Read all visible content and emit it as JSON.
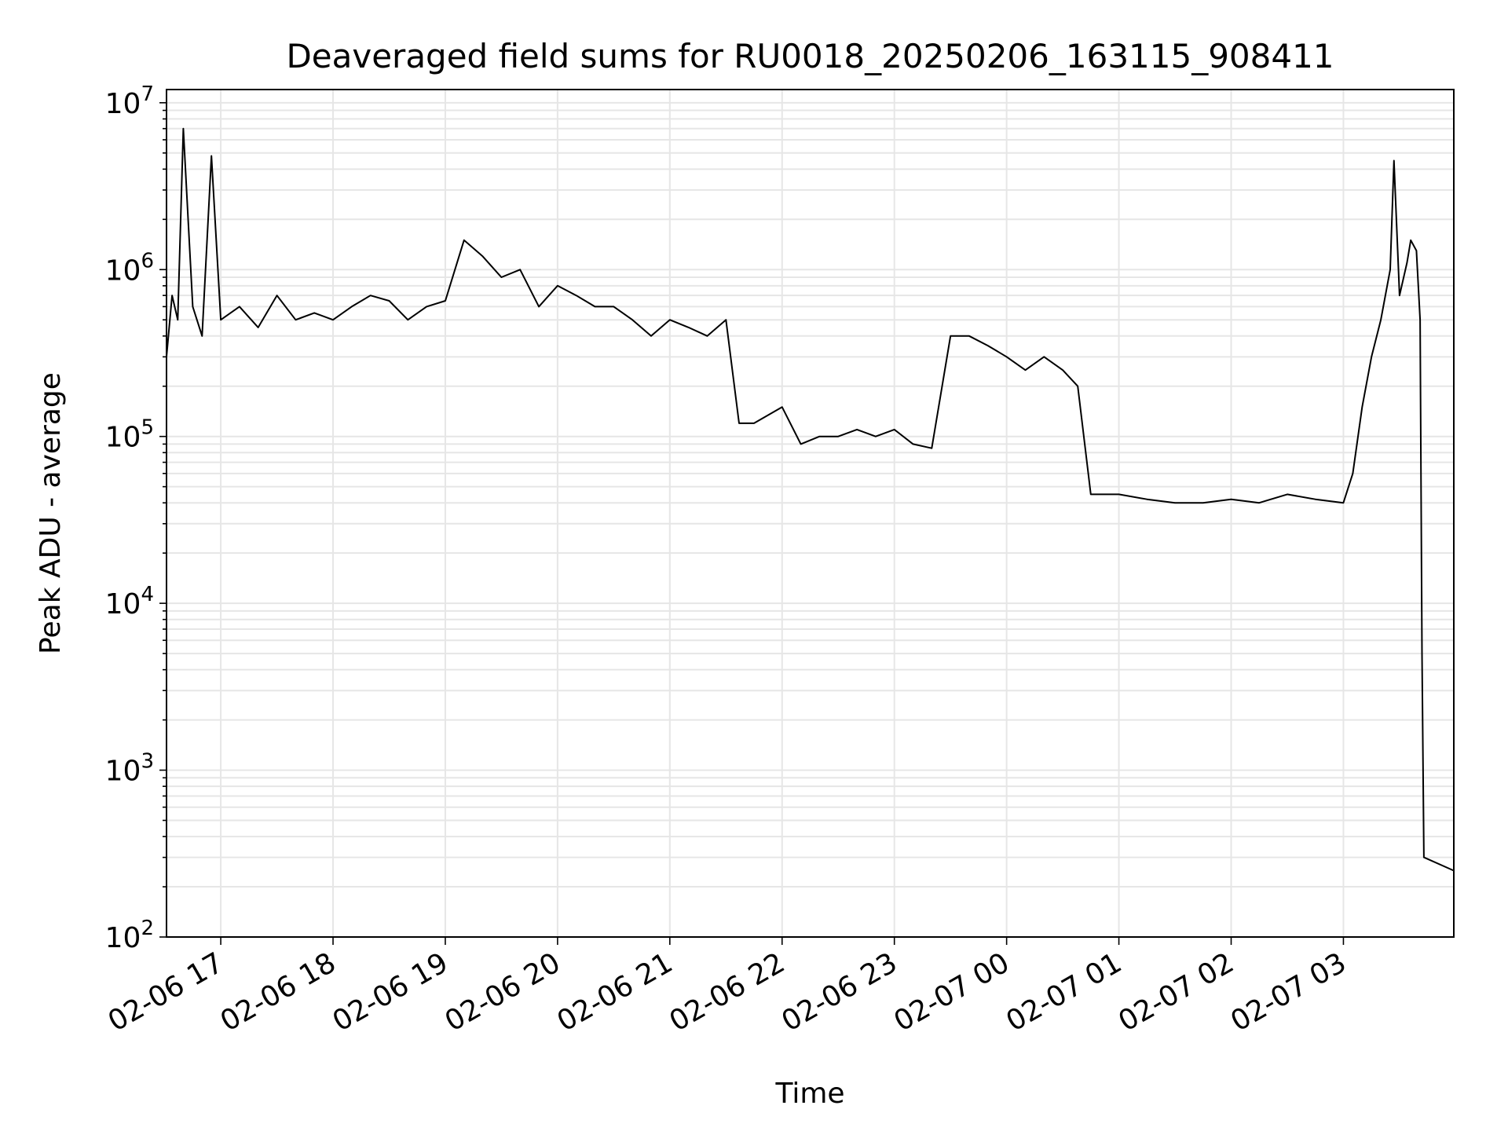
{
  "chart_data": {
    "type": "line",
    "title": "Deaveraged field sums for RU0018_20250206_163115_908411",
    "xlabel": "Time",
    "ylabel": "Peak ADU - average",
    "yscale": "log",
    "ylim": [
      100,
      12000000
    ],
    "xlim": [
      "2025-02-06 16:31",
      "2025-02-07 03:59"
    ],
    "grid": true,
    "grid_color": "#e6e6e6",
    "line_color": "#000000",
    "legend": "none",
    "x_ticks": [
      {
        "t": "2025-02-06 17:00",
        "label": "02-06 17"
      },
      {
        "t": "2025-02-06 18:00",
        "label": "02-06 18"
      },
      {
        "t": "2025-02-06 19:00",
        "label": "02-06 19"
      },
      {
        "t": "2025-02-06 20:00",
        "label": "02-06 20"
      },
      {
        "t": "2025-02-06 21:00",
        "label": "02-06 21"
      },
      {
        "t": "2025-02-06 22:00",
        "label": "02-06 22"
      },
      {
        "t": "2025-02-06 23:00",
        "label": "02-06 23"
      },
      {
        "t": "2025-02-07 00:00",
        "label": "02-07 00"
      },
      {
        "t": "2025-02-07 01:00",
        "label": "02-07 01"
      },
      {
        "t": "2025-02-07 02:00",
        "label": "02-07 02"
      },
      {
        "t": "2025-02-07 03:00",
        "label": "02-07 03"
      }
    ],
    "y_ticks": [
      {
        "v": 100,
        "mantissa": "10",
        "exp": "2"
      },
      {
        "v": 1000,
        "mantissa": "10",
        "exp": "3"
      },
      {
        "v": 10000,
        "mantissa": "10",
        "exp": "4"
      },
      {
        "v": 100000,
        "mantissa": "10",
        "exp": "5"
      },
      {
        "v": 1000000,
        "mantissa": "10",
        "exp": "6"
      },
      {
        "v": 10000000,
        "mantissa": "10",
        "exp": "7"
      }
    ],
    "series": [
      {
        "x": [
          "2025-02-06 16:31",
          "2025-02-06 16:34",
          "2025-02-06 16:37",
          "2025-02-06 16:40",
          "2025-02-06 16:45",
          "2025-02-06 16:50",
          "2025-02-06 16:55",
          "2025-02-06 17:00",
          "2025-02-06 17:10",
          "2025-02-06 17:20",
          "2025-02-06 17:30",
          "2025-02-06 17:40",
          "2025-02-06 17:50",
          "2025-02-06 18:00",
          "2025-02-06 18:10",
          "2025-02-06 18:20",
          "2025-02-06 18:30",
          "2025-02-06 18:40",
          "2025-02-06 18:50",
          "2025-02-06 19:00",
          "2025-02-06 19:10",
          "2025-02-06 19:20",
          "2025-02-06 19:30",
          "2025-02-06 19:40",
          "2025-02-06 19:50",
          "2025-02-06 20:00",
          "2025-02-06 20:10",
          "2025-02-06 20:20",
          "2025-02-06 20:30",
          "2025-02-06 20:40",
          "2025-02-06 20:50",
          "2025-02-06 21:00",
          "2025-02-06 21:10",
          "2025-02-06 21:20",
          "2025-02-06 21:30",
          "2025-02-06 21:37",
          "2025-02-06 21:45",
          "2025-02-06 22:00",
          "2025-02-06 22:10",
          "2025-02-06 22:20",
          "2025-02-06 22:30",
          "2025-02-06 22:40",
          "2025-02-06 22:50",
          "2025-02-06 23:00",
          "2025-02-06 23:10",
          "2025-02-06 23:20",
          "2025-02-06 23:30",
          "2025-02-06 23:40",
          "2025-02-06 23:50",
          "2025-02-07 00:00",
          "2025-02-07 00:10",
          "2025-02-07 00:20",
          "2025-02-07 00:30",
          "2025-02-07 00:38",
          "2025-02-07 00:45",
          "2025-02-07 01:00",
          "2025-02-07 01:15",
          "2025-02-07 01:30",
          "2025-02-07 01:45",
          "2025-02-07 02:00",
          "2025-02-07 02:15",
          "2025-02-07 02:30",
          "2025-02-07 02:45",
          "2025-02-07 03:00",
          "2025-02-07 03:05",
          "2025-02-07 03:10",
          "2025-02-07 03:15",
          "2025-02-07 03:20",
          "2025-02-07 03:25",
          "2025-02-07 03:27",
          "2025-02-07 03:30",
          "2025-02-07 03:34",
          "2025-02-07 03:36",
          "2025-02-07 03:39",
          "2025-02-07 03:41",
          "2025-02-07 03:42",
          "2025-02-07 03:43",
          "2025-02-07 03:59"
        ],
        "y": [
          300000,
          700000,
          500000,
          7000000,
          600000,
          400000,
          4800000,
          500000,
          600000,
          450000,
          700000,
          500000,
          550000,
          500000,
          600000,
          700000,
          650000,
          500000,
          600000,
          650000,
          1500000,
          1200000,
          900000,
          1000000,
          600000,
          800000,
          700000,
          600000,
          600000,
          500000,
          400000,
          500000,
          450000,
          400000,
          500000,
          120000,
          120000,
          150000,
          90000,
          100000,
          100000,
          110000,
          100000,
          110000,
          90000,
          85000,
          400000,
          400000,
          350000,
          300000,
          250000,
          300000,
          250000,
          200000,
          45000,
          45000,
          42000,
          40000,
          40000,
          42000,
          40000,
          45000,
          42000,
          40000,
          60000,
          150000,
          300000,
          500000,
          1000000,
          4500000,
          700000,
          1100000,
          1500000,
          1300000,
          500000,
          5000,
          300,
          250
        ]
      }
    ]
  }
}
